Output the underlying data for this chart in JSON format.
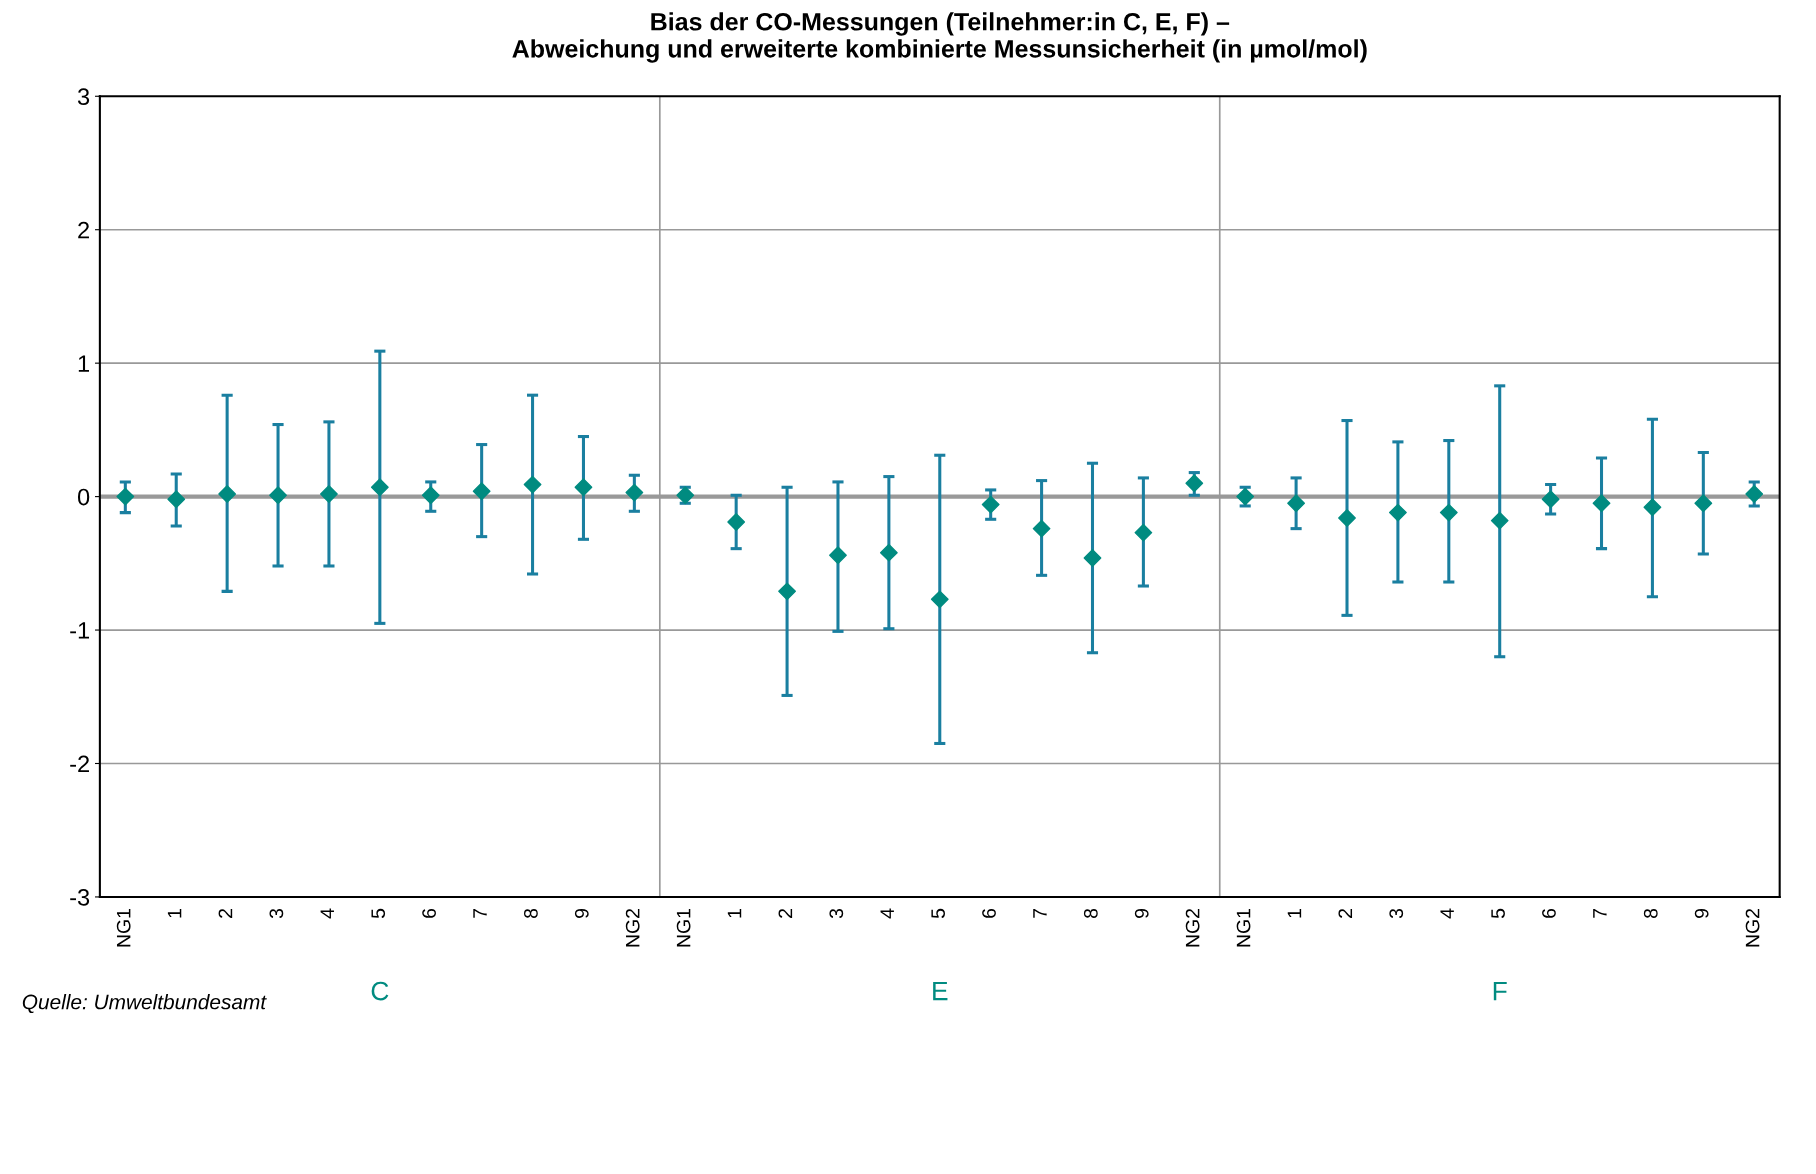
{
  "chart_data": {
    "type": "scatter",
    "title": "Bias der CO-Messungen (Teilnehmer:in C, E, F) –\nAbweichung und erweiterte kombinierte Messunsicherheit (in µmol/mol)",
    "categories": [
      "NG1",
      "1",
      "2",
      "3",
      "4",
      "5",
      "6",
      "7",
      "8",
      "9",
      "NG2",
      "NG1",
      "1",
      "2",
      "3",
      "4",
      "5",
      "6",
      "7",
      "8",
      "9",
      "NG2",
      "NG1",
      "1",
      "2",
      "3",
      "4",
      "5",
      "6",
      "7",
      "8",
      "9",
      "NG2"
    ],
    "series": [
      {
        "color": "#008b80",
        "values": [
          0.0,
          -0.02,
          0.02,
          0.01,
          0.02,
          0.07,
          0.01,
          0.04,
          0.09,
          0.07,
          0.03,
          0.01,
          -0.19,
          -0.71,
          -0.44,
          -0.42,
          -0.77,
          -0.06,
          -0.24,
          -0.46,
          -0.27,
          0.1,
          0.0,
          -0.05,
          -0.16,
          -0.12,
          -0.12,
          -0.18,
          -0.02,
          -0.05,
          -0.08,
          -0.05,
          0.02
        ],
        "errors": [
          [
            -0.12,
            0.11
          ],
          [
            -0.22,
            0.17
          ],
          [
            -0.71,
            0.76
          ],
          [
            -0.52,
            0.54
          ],
          [
            -0.52,
            0.56
          ],
          [
            -0.95,
            1.09
          ],
          [
            -0.11,
            0.11
          ],
          [
            -0.3,
            0.39
          ],
          [
            -0.58,
            0.76
          ],
          [
            -0.32,
            0.45
          ],
          [
            -0.11,
            0.16
          ],
          [
            -0.05,
            0.07
          ],
          [
            -0.39,
            0.01
          ],
          [
            -1.49,
            0.07
          ],
          [
            -1.01,
            0.11
          ],
          [
            -0.99,
            0.15
          ],
          [
            -1.85,
            0.31
          ],
          [
            -0.17,
            0.05
          ],
          [
            -0.59,
            0.12
          ],
          [
            -1.17,
            0.25
          ],
          [
            -0.67,
            0.14
          ],
          [
            0.01,
            0.18
          ],
          [
            -0.07,
            0.07
          ],
          [
            -0.24,
            0.14
          ],
          [
            -0.89,
            0.57
          ],
          [
            -0.64,
            0.41
          ],
          [
            -0.64,
            0.42
          ],
          [
            -1.2,
            0.83
          ],
          [
            -0.13,
            0.09
          ],
          [
            -0.39,
            0.29
          ],
          [
            -0.75,
            0.58
          ],
          [
            -0.43,
            0.33
          ],
          [
            -0.07,
            0.11
          ]
        ]
      }
    ],
    "ylim": [
      -3,
      3
    ],
    "yticks": [
      -3,
      -2,
      -1,
      0,
      1,
      2,
      3
    ],
    "ref_lines": [
      {
        "axis": "y",
        "value": 0,
        "color": "#999999"
      }
    ],
    "grid": "y",
    "marker": "diamond",
    "annotations": [
      "C",
      "E",
      "F",
      "Quelle: Umweltbundesamt"
    ]
  }
}
